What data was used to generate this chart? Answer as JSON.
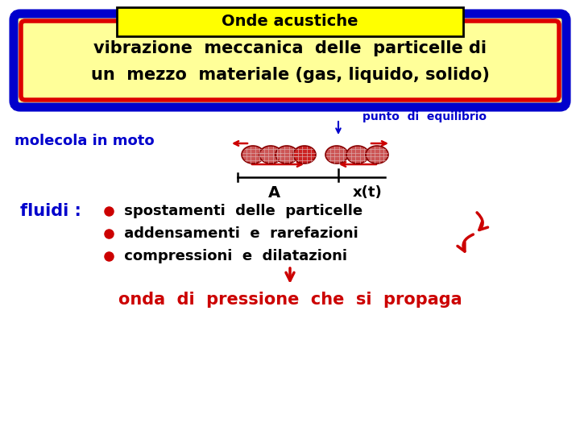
{
  "bg_color": "#ffffff",
  "title_box_text": "Onde acustiche",
  "title_box_bg": "#ffff00",
  "title_box_border": "#000000",
  "subtitle_text_line1": "vibrazione  meccanica  delle  particelle di",
  "subtitle_text_line2": "un  mezzo  materiale (gas, liquido, solido)",
  "subtitle_box_bg": "#ffff99",
  "subtitle_box_border_outer": "#0000cc",
  "subtitle_box_border_inner": "#dd0000",
  "molecola_text": "molecola in moto",
  "molecola_color": "#0000cc",
  "punto_text": "punto  di  equilibrio",
  "punto_color": "#0000cc",
  "fluidi_label": "fluidi :",
  "fluidi_color": "#0000cc",
  "bullet_items": [
    " spostamenti  delle  particelle",
    " addensamenti  e  rarefazioni",
    " compressioni  e  dilatazioni"
  ],
  "bullet_color": "#000000",
  "bullet_dot_color": "#cc0000",
  "bottom_text": "onda  di  pressione  che  si  propaga",
  "bottom_color": "#cc0000",
  "arrow_color": "#cc0000",
  "axis_color": "#000000",
  "A_label": "A",
  "xt_label": "x(t)",
  "particle_fill": "#cc3333",
  "particle_grid": "#cc9999",
  "particle_edge": "#880000"
}
